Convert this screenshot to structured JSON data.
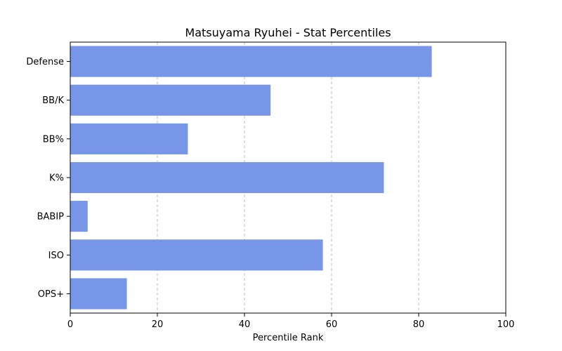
{
  "chart_data": {
    "type": "bar",
    "orientation": "horizontal",
    "title": "Matsuyama Ryuhei - Stat Percentiles",
    "xlabel": "Percentile Rank",
    "ylabel": "",
    "categories": [
      "Defense",
      "BB/K",
      "BB%",
      "K%",
      "BABIP",
      "ISO",
      "OPS+"
    ],
    "values": [
      83,
      46,
      27,
      72,
      4,
      58,
      13
    ],
    "xlim": [
      0,
      100
    ],
    "xticks": [
      0,
      20,
      40,
      60,
      80,
      100
    ],
    "grid": {
      "x": true,
      "y": false,
      "style": "dashed"
    },
    "legend": null,
    "colors": {
      "bar": "#7896e8",
      "grid": "#b0b0b0",
      "axis": "#000000"
    }
  }
}
